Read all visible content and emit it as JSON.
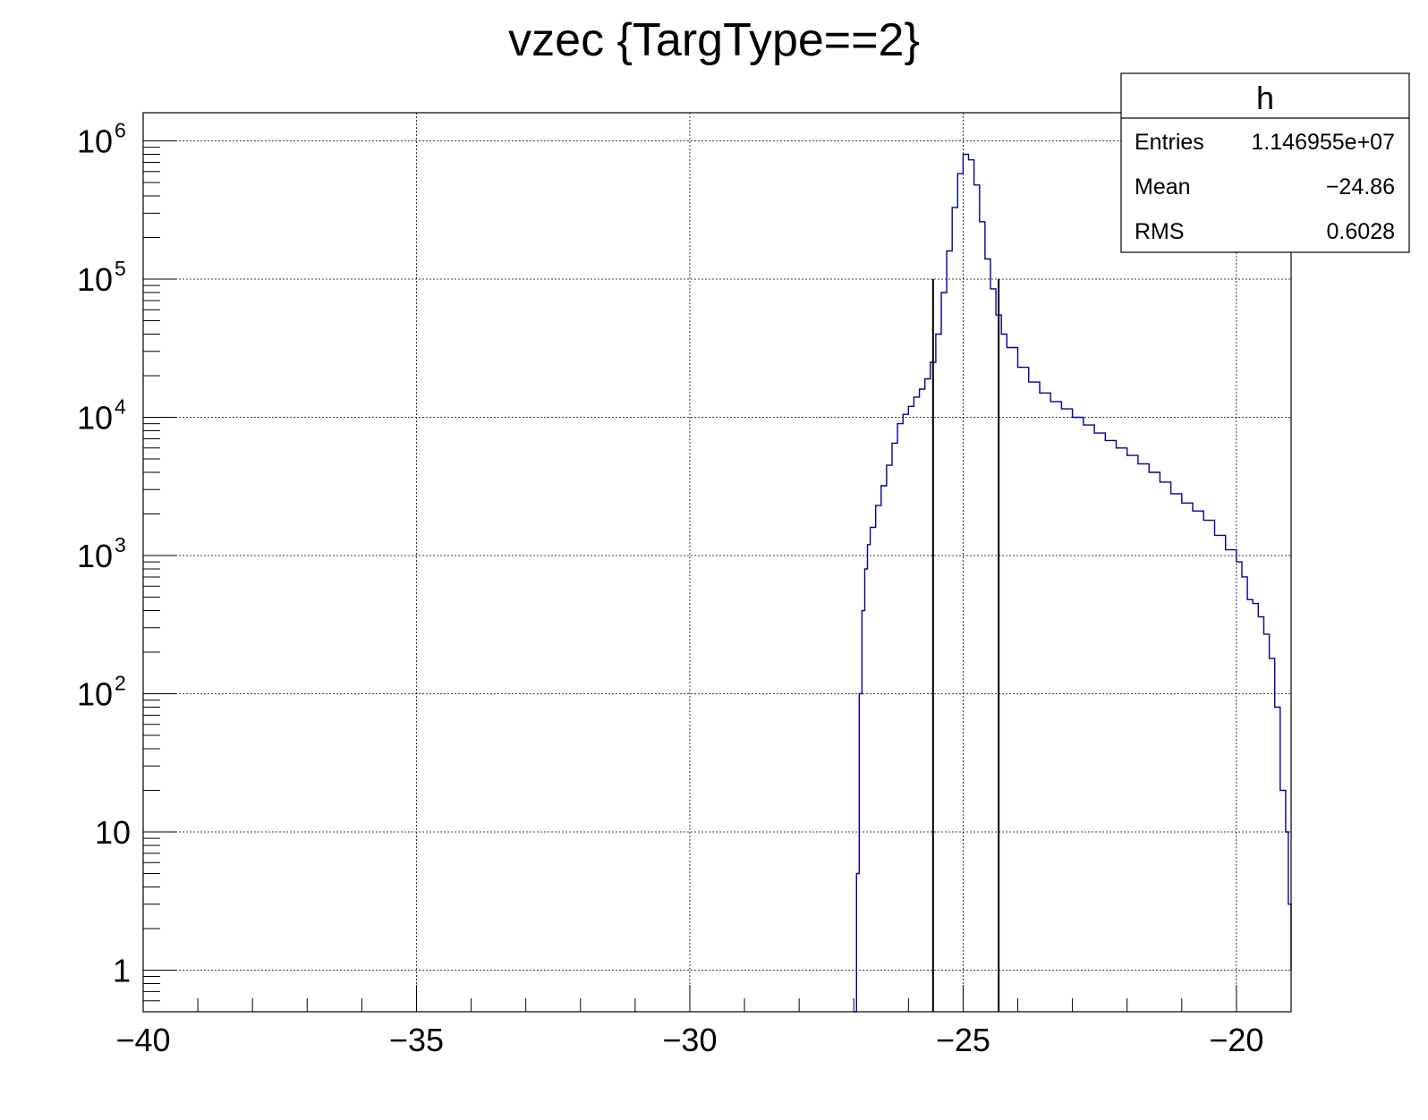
{
  "chart_data": {
    "type": "histogram",
    "title": "vzec {TargType==2}",
    "xlabel": "",
    "ylabel": "",
    "xlim": [
      -40,
      -19
    ],
    "ylim": [
      0.5,
      1600000
    ],
    "y_scale": "log",
    "grid": true,
    "x_ticks": [
      {
        "value": -40,
        "label": "−40"
      },
      {
        "value": -35,
        "label": "−35"
      },
      {
        "value": -30,
        "label": "−30"
      },
      {
        "value": -25,
        "label": "−25"
      },
      {
        "value": -20,
        "label": "−20"
      }
    ],
    "y_ticks": [
      {
        "value": 1,
        "base": "1",
        "exp": ""
      },
      {
        "value": 10,
        "base": "10",
        "exp": ""
      },
      {
        "value": 100,
        "base": "10",
        "exp": "2"
      },
      {
        "value": 1000,
        "base": "10",
        "exp": "3"
      },
      {
        "value": 10000,
        "base": "10",
        "exp": "4"
      },
      {
        "value": 100000,
        "base": "10",
        "exp": "5"
      },
      {
        "value": 1000000,
        "base": "10",
        "exp": "6"
      }
    ],
    "series": [
      {
        "color": "#000099",
        "points": [
          [
            -27.0,
            0.5
          ],
          [
            -26.95,
            5
          ],
          [
            -26.9,
            100
          ],
          [
            -26.85,
            400
          ],
          [
            -26.8,
            800
          ],
          [
            -26.75,
            1200
          ],
          [
            -26.7,
            1600
          ],
          [
            -26.6,
            2300
          ],
          [
            -26.5,
            3200
          ],
          [
            -26.4,
            4500
          ],
          [
            -26.3,
            6500
          ],
          [
            -26.2,
            9000
          ],
          [
            -26.1,
            10500
          ],
          [
            -26.0,
            12000
          ],
          [
            -25.9,
            14000
          ],
          [
            -25.8,
            16000
          ],
          [
            -25.7,
            19000
          ],
          [
            -25.6,
            25000
          ],
          [
            -25.5,
            40000
          ],
          [
            -25.4,
            80000
          ],
          [
            -25.3,
            160000
          ],
          [
            -25.2,
            330000
          ],
          [
            -25.1,
            580000
          ],
          [
            -25.0,
            800000
          ],
          [
            -24.9,
            730000
          ],
          [
            -24.8,
            480000
          ],
          [
            -24.7,
            260000
          ],
          [
            -24.6,
            140000
          ],
          [
            -24.5,
            85000
          ],
          [
            -24.4,
            55000
          ],
          [
            -24.3,
            40000
          ],
          [
            -24.2,
            32000
          ],
          [
            -24.0,
            23000
          ],
          [
            -23.8,
            18000
          ],
          [
            -23.6,
            15000
          ],
          [
            -23.4,
            13000
          ],
          [
            -23.2,
            11500
          ],
          [
            -23.0,
            10000
          ],
          [
            -22.8,
            8800
          ],
          [
            -22.6,
            7700
          ],
          [
            -22.4,
            6800
          ],
          [
            -22.2,
            6000
          ],
          [
            -22.0,
            5300
          ],
          [
            -21.8,
            4600
          ],
          [
            -21.6,
            4000
          ],
          [
            -21.4,
            3400
          ],
          [
            -21.2,
            2800
          ],
          [
            -21.0,
            2400
          ],
          [
            -20.8,
            2100
          ],
          [
            -20.6,
            1800
          ],
          [
            -20.4,
            1400
          ],
          [
            -20.2,
            1100
          ],
          [
            -20.0,
            900
          ],
          [
            -19.9,
            700
          ],
          [
            -19.8,
            480
          ],
          [
            -19.7,
            450
          ],
          [
            -19.6,
            360
          ],
          [
            -19.5,
            270
          ],
          [
            -19.4,
            180
          ],
          [
            -19.3,
            80
          ],
          [
            -19.2,
            20
          ],
          [
            -19.1,
            10
          ],
          [
            -19.05,
            3
          ],
          [
            -19.0,
            1
          ]
        ]
      }
    ],
    "cut_lines": [
      {
        "x": -25.55,
        "y": 100000
      },
      {
        "x": -24.35,
        "y": 100000
      }
    ],
    "stats_box": {
      "name": "h",
      "rows": [
        {
          "label": "Entries",
          "value": "1.146955e+07"
        },
        {
          "label": "Mean",
          "value": "−24.86"
        },
        {
          "label": "RMS",
          "value": "0.6028"
        }
      ]
    }
  }
}
